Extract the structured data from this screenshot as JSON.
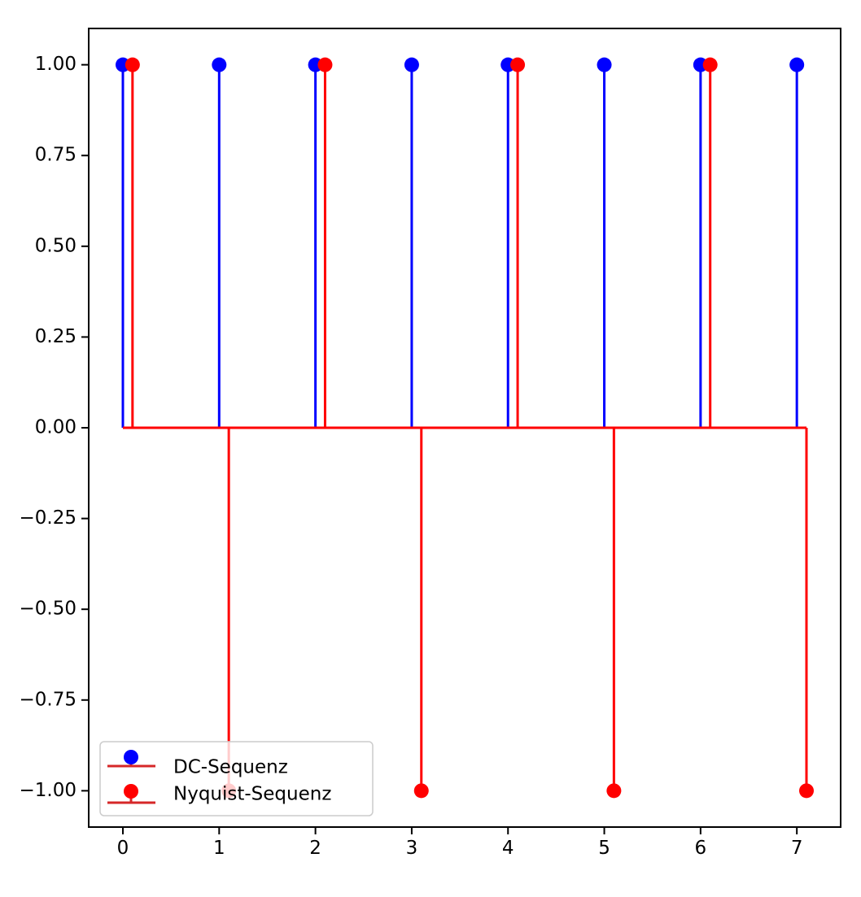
{
  "chart_data": {
    "type": "stem",
    "title": "",
    "xlabel": "",
    "ylabel": "",
    "xlim": [
      -0.355,
      7.455
    ],
    "ylim": [
      -1.1,
      1.1
    ],
    "x_ticks": [
      0,
      1,
      2,
      3,
      4,
      5,
      6,
      7
    ],
    "x_tick_labels": [
      "0",
      "1",
      "2",
      "3",
      "4",
      "5",
      "6",
      "7"
    ],
    "y_ticks": [
      1.0,
      0.75,
      0.5,
      0.25,
      0.0,
      -0.25,
      -0.5,
      -0.75,
      -1.0
    ],
    "y_tick_labels": [
      "1.00",
      "0.75",
      "0.50",
      "0.25",
      "0.00",
      "−0.25",
      "−0.50",
      "−0.75",
      "−1.00"
    ],
    "baseline": 0,
    "baseline_color": "#ff0000",
    "legend_position": "lower left",
    "grid": false,
    "series": [
      {
        "name": "DC-Sequenz",
        "color": "#0000ff",
        "x": [
          0,
          1,
          2,
          3,
          4,
          5,
          6,
          7
        ],
        "y": [
          1,
          1,
          1,
          1,
          1,
          1,
          1,
          1
        ]
      },
      {
        "name": "Nyquist-Sequenz",
        "color": "#ff0000",
        "x": [
          0.1,
          1.1,
          2.1,
          3.1,
          4.1,
          5.1,
          6.1,
          7.1
        ],
        "y": [
          1,
          -1,
          1,
          -1,
          1,
          -1,
          1,
          -1
        ]
      }
    ],
    "legend_line_color": "#d62728"
  }
}
